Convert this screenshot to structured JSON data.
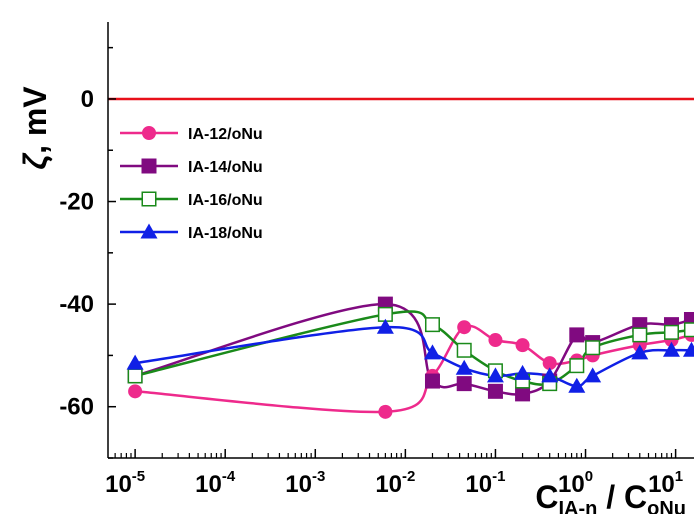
{
  "chart_data": {
    "type": "scatter",
    "xscale": "log",
    "xlim": [
      5e-06,
      16
    ],
    "ylim": [
      -70,
      15
    ],
    "yticks": [
      0,
      -20,
      -40,
      -60
    ],
    "xlabel": {
      "main": "C",
      "sub1": "IA-n",
      "mid": " / C",
      "sub2": "oNu"
    },
    "ylabel": {
      "symbol": "ζ",
      "unit": ", mV"
    },
    "xtick_labels": [
      {
        "base": "10",
        "exp": "-5",
        "value": 1e-05
      },
      {
        "base": "10",
        "exp": "-4",
        "value": 0.0001
      },
      {
        "base": "10",
        "exp": "-3",
        "value": 0.001
      },
      {
        "base": "10",
        "exp": "-2",
        "value": 0.01
      },
      {
        "base": "10",
        "exp": "-1",
        "value": 0.1
      },
      {
        "base": "10",
        "exp": "0",
        "value": 1
      },
      {
        "base": "10",
        "exp": "1",
        "value": 10
      }
    ],
    "reference_line": {
      "y": 0,
      "color": "#e8101a"
    },
    "legend_position": "upper-left",
    "series": [
      {
        "name": "IA-12/oNu",
        "color": "#ee2a8c",
        "marker": "circle",
        "x": [
          1e-05,
          0.006,
          0.02,
          0.045,
          0.1,
          0.2,
          0.4,
          0.8,
          1.2,
          4,
          9,
          15
        ],
        "y": [
          -57,
          -61,
          -54,
          -44.5,
          -47,
          -48,
          -51.5,
          -51,
          -50,
          -48,
          -47,
          -46
        ]
      },
      {
        "name": "IA-14/oNu",
        "color": "#800a80",
        "marker": "square",
        "x": [
          1e-05,
          0.006,
          0.02,
          0.045,
          0.1,
          0.2,
          0.4,
          0.8,
          1.2,
          4,
          9,
          15
        ],
        "y": [
          -54,
          -40,
          -55,
          -55.5,
          -57,
          -57.5,
          -55,
          -46,
          -47.5,
          -44,
          -44,
          -43
        ]
      },
      {
        "name": "IA-16/oNu",
        "color": "#1a8a1a",
        "marker": "square-open",
        "x": [
          1e-05,
          0.006,
          0.02,
          0.045,
          0.1,
          0.2,
          0.4,
          0.8,
          1.2,
          4,
          9,
          15
        ],
        "y": [
          -54,
          -42,
          -44,
          -49,
          -53,
          -55,
          -55.5,
          -52,
          -48.5,
          -46,
          -45.5,
          -45
        ]
      },
      {
        "name": "IA-18/oNu",
        "color": "#1020e6",
        "marker": "triangle",
        "x": [
          1e-05,
          0.006,
          0.02,
          0.045,
          0.1,
          0.2,
          0.4,
          0.8,
          1.2,
          4,
          9,
          15
        ],
        "y": [
          -51.5,
          -44.5,
          -49.5,
          -52.5,
          -54,
          -53.5,
          -54,
          -56,
          -54,
          -49.5,
          -49,
          -49
        ]
      }
    ]
  }
}
